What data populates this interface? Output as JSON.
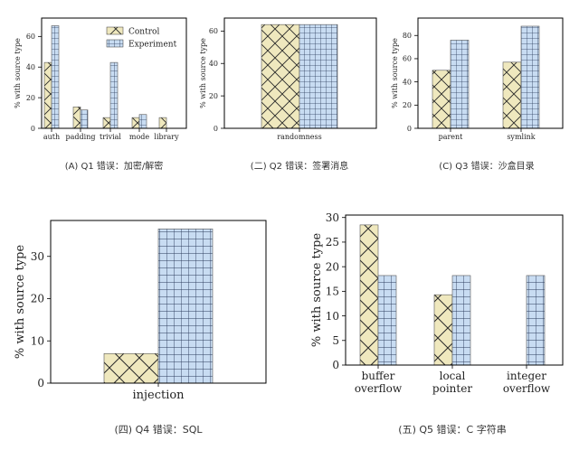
{
  "colors": {
    "control_fill": "#efe8be",
    "experiment_fill": "#c8dcf2",
    "control_hatch": "#2a2a2a",
    "experiment_hatch": "#2a3a5a",
    "axis": "#000000"
  },
  "legend": {
    "control": "Control",
    "experiment": "Experiment"
  },
  "chart_data": [
    {
      "id": "q1",
      "type": "bar",
      "categories": [
        "auth",
        "padding",
        "trivial",
        "mode",
        "library"
      ],
      "series": [
        {
          "name": "Control",
          "values": [
            43,
            14,
            7,
            7,
            7
          ]
        },
        {
          "name": "Experiment",
          "values": [
            67,
            12,
            43,
            9,
            0
          ]
        }
      ],
      "ylabel": "% with source type",
      "yticks": [
        0,
        20,
        40,
        60
      ],
      "ylim": [
        0,
        72
      ],
      "legend_position": "top-right",
      "caption": "(A)  Q1 错误：加密/解密"
    },
    {
      "id": "q2",
      "type": "bar",
      "categories": [
        "randomness"
      ],
      "series": [
        {
          "name": "Control",
          "values": [
            64
          ]
        },
        {
          "name": "Experiment",
          "values": [
            64
          ]
        }
      ],
      "ylabel": "% with source type",
      "yticks": [
        0,
        20,
        40,
        60
      ],
      "ylim": [
        0,
        68
      ],
      "caption": "(二) Q2 错误：签署消息"
    },
    {
      "id": "q3",
      "type": "bar",
      "categories": [
        "parent",
        "symlink"
      ],
      "series": [
        {
          "name": "Control",
          "values": [
            50,
            57
          ]
        },
        {
          "name": "Experiment",
          "values": [
            76,
            88
          ]
        }
      ],
      "ylabel": "% with source type",
      "yticks": [
        0,
        20,
        40,
        60,
        80
      ],
      "ylim": [
        0,
        95
      ],
      "caption": "(C)  Q3 错误：沙盒目录"
    },
    {
      "id": "q4",
      "type": "bar",
      "categories": [
        "injection"
      ],
      "series": [
        {
          "name": "Control",
          "values": [
            7
          ]
        },
        {
          "name": "Experiment",
          "values": [
            36.5
          ]
        }
      ],
      "ylabel": "% with source type",
      "yticks": [
        0,
        10,
        20,
        30
      ],
      "ylim": [
        0,
        38.5
      ],
      "caption": "(四) Q4 错误：SQL"
    },
    {
      "id": "q5",
      "type": "bar",
      "categories": [
        "buffer\noverflow",
        "local\npointer",
        "integer\noverflow"
      ],
      "series": [
        {
          "name": "Control",
          "values": [
            28.5,
            14.3,
            0
          ]
        },
        {
          "name": "Experiment",
          "values": [
            18.2,
            18.2,
            18.2
          ]
        }
      ],
      "ylabel": "% with source type",
      "yticks": [
        0,
        5,
        10,
        15,
        20,
        25,
        30
      ],
      "ylim": [
        0,
        30.5
      ],
      "caption": "(五)  Q5 错误：C 字符串"
    }
  ]
}
